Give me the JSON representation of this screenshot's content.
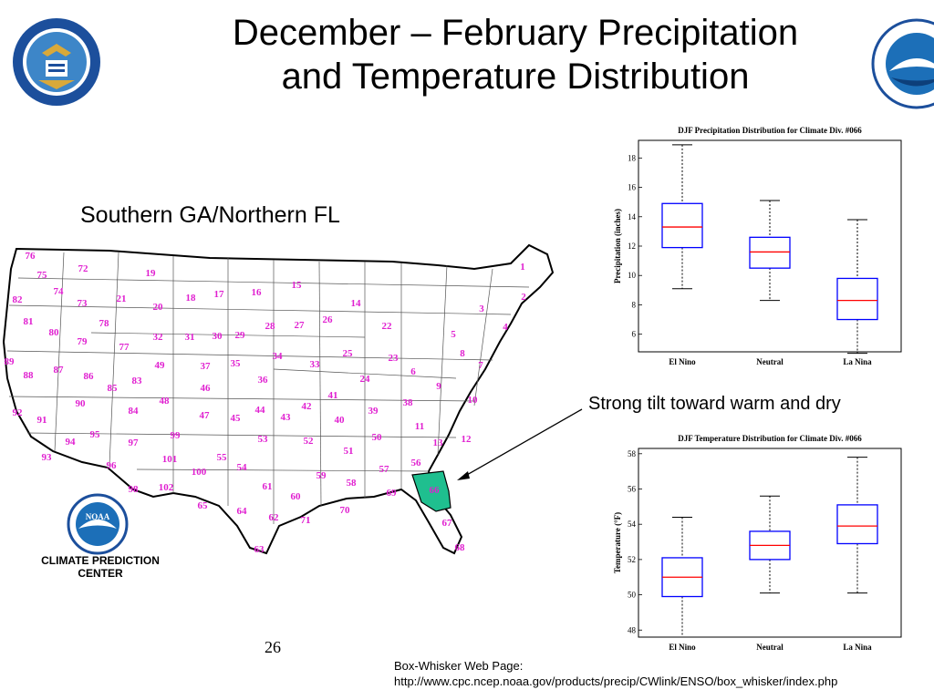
{
  "slide": {
    "title_line1": "December – February Precipitation",
    "title_line2": "and Temperature Distribution",
    "region_label": "Southern GA/Northern FL",
    "annotation": "Strong tilt toward warm and dry",
    "page_number": "26",
    "source_label": "Box-Whisker Web Page:",
    "source_url": "http://www.cpc.ncep.noaa.gov/products/precip/CWlink/ENSO/box_whisker/index.php",
    "cpc_line1": "CLIMATE PREDICTION",
    "cpc_line2": "CENTER",
    "noaa_text": "NOAA",
    "highlight_color": "#1fbf8f",
    "label_color": "#e020d0"
  },
  "map": {
    "divisions": [
      "1",
      "2",
      "3",
      "4",
      "5",
      "6",
      "7",
      "8",
      "9",
      "10",
      "11",
      "12",
      "13",
      "14",
      "15",
      "16",
      "17",
      "18",
      "19",
      "20",
      "21",
      "22",
      "23",
      "24",
      "25",
      "26",
      "27",
      "28",
      "29",
      "30",
      "31",
      "32",
      "33",
      "34",
      "35",
      "36",
      "37",
      "38",
      "39",
      "40",
      "41",
      "42",
      "43",
      "44",
      "45",
      "46",
      "47",
      "48",
      "49",
      "50",
      "51",
      "52",
      "53",
      "54",
      "55",
      "56",
      "57",
      "58",
      "59",
      "60",
      "61",
      "62",
      "63",
      "64",
      "65",
      "66",
      "67",
      "68",
      "69",
      "70",
      "71",
      "72",
      "73",
      "74",
      "75",
      "76",
      "77",
      "78",
      "79",
      "80",
      "81",
      "82",
      "83",
      "84",
      "85",
      "86",
      "87",
      "88",
      "89",
      "90",
      "91",
      "92",
      "93",
      "94",
      "95",
      "96",
      "97",
      "98",
      "99",
      "100",
      "101",
      "102"
    ]
  },
  "chart_data": [
    {
      "type": "box",
      "title": "DJF Precipitation Distribution for Climate Div. #066",
      "ylabel": "Precipitation (inches)",
      "categories": [
        "El Nino",
        "Neutral",
        "La Nina"
      ],
      "ylim": [
        4.8,
        19.2
      ],
      "yticks": [
        6,
        8,
        10,
        12,
        14,
        16,
        18
      ],
      "boxes": [
        {
          "min": 9.1,
          "q1": 11.9,
          "median": 13.3,
          "q3": 14.9,
          "max": 18.9
        },
        {
          "min": 8.3,
          "q1": 10.5,
          "median": 11.6,
          "q3": 12.6,
          "max": 15.1
        },
        {
          "min": 4.7,
          "q1": 7.0,
          "median": 8.3,
          "q3": 9.8,
          "max": 13.8
        }
      ],
      "box_color": "#0000ff",
      "median_color": "#ff0000"
    },
    {
      "type": "box",
      "title": "DJF Temperature Distribution for Climate Div. #066",
      "ylabel": "Temperature (°F)",
      "categories": [
        "El Nino",
        "Neutral",
        "La Nina"
      ],
      "ylim": [
        47.6,
        58.3
      ],
      "yticks": [
        48,
        50,
        52,
        54,
        56,
        58
      ],
      "boxes": [
        {
          "min": 47.6,
          "q1": 49.9,
          "median": 51.0,
          "q3": 52.1,
          "max": 54.4
        },
        {
          "min": 50.1,
          "q1": 52.0,
          "median": 52.8,
          "q3": 53.6,
          "max": 55.6
        },
        {
          "min": 50.1,
          "q1": 52.9,
          "median": 53.9,
          "q3": 55.1,
          "max": 57.8
        }
      ],
      "box_color": "#0000ff",
      "median_color": "#ff0000"
    }
  ]
}
